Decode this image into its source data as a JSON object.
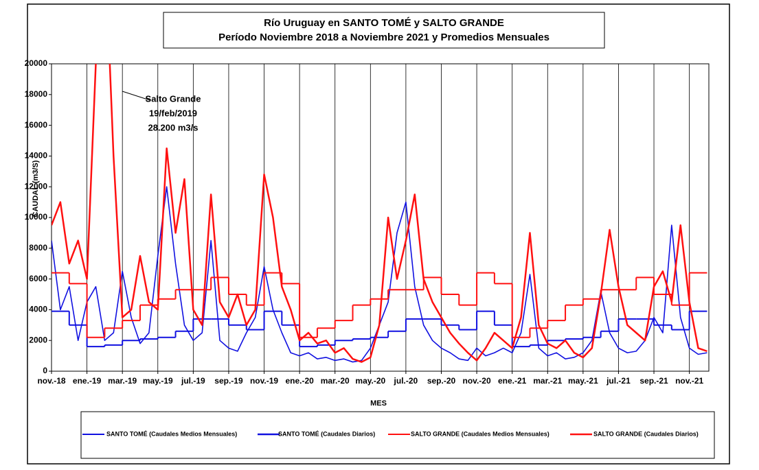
{
  "chart_data": {
    "type": "line",
    "title": [
      "Río Uruguay en SANTO TOMÉ y SALTO GRANDE",
      "Período Noviembre  2018 a Noviembre  2021 y Promedios Mensuales"
    ],
    "xlabel": "MES",
    "ylabel": "CAUDAL  (m3/S)",
    "annotation": [
      "Salto Grande",
      "19/feb/2019",
      "28.200  m3/s"
    ],
    "xlim": [
      0,
      37.1
    ],
    "ylim": [
      0,
      20000
    ],
    "yticks": [
      0,
      2000,
      4000,
      6000,
      8000,
      10000,
      12000,
      14000,
      16000,
      18000,
      20000
    ],
    "xticks": [
      {
        "value": 0,
        "label": "nov.-18"
      },
      {
        "value": 2,
        "label": "ene.-19"
      },
      {
        "value": 4,
        "label": "mar.-19"
      },
      {
        "value": 6,
        "label": "may.-19"
      },
      {
        "value": 8,
        "label": "jul.-19"
      },
      {
        "value": 10,
        "label": "sep.-19"
      },
      {
        "value": 12,
        "label": "nov.-19"
      },
      {
        "value": 14,
        "label": "ene.-20"
      },
      {
        "value": 16,
        "label": "mar.-20"
      },
      {
        "value": 18,
        "label": "may.-20"
      },
      {
        "value": 20,
        "label": "jul.-20"
      },
      {
        "value": 22,
        "label": "sep.-20"
      },
      {
        "value": 24,
        "label": "nov.-20"
      },
      {
        "value": 26,
        "label": "ene.-21"
      },
      {
        "value": 28,
        "label": "mar.-21"
      },
      {
        "value": 30,
        "label": "may.-21"
      },
      {
        "value": 32,
        "label": "jul.-21"
      },
      {
        "value": 34,
        "label": "sep.-21"
      },
      {
        "value": 36,
        "label": "nov.-21"
      }
    ],
    "grid": "x",
    "series": [
      {
        "name": "SANTO TOMÉ (Caudales Medios Mensuales)",
        "color": "#1010e0",
        "style": "step",
        "x": [
          0,
          1,
          2,
          3,
          4,
          5,
          6,
          7,
          8,
          9,
          10,
          11,
          12,
          13,
          14,
          15,
          16,
          17,
          18,
          19,
          20,
          21,
          22,
          23,
          24,
          25,
          26,
          27,
          28,
          29,
          30,
          31,
          32,
          33,
          34,
          35,
          36
        ],
        "values": [
          3900,
          3000,
          1600,
          1700,
          2000,
          2100,
          2200,
          2600,
          3400,
          3400,
          3000,
          2700,
          3900,
          3000,
          1600,
          1700,
          2000,
          2100,
          2200,
          2600,
          3400,
          3400,
          3000,
          2700,
          3900,
          3000,
          1600,
          1700,
          2000,
          2100,
          2200,
          2600,
          3400,
          3400,
          3000,
          2700,
          3900
        ]
      },
      {
        "name": "SANTO TOMÉ (Caudales Diarios)",
        "color": "#1010e0",
        "style": "line",
        "x": [
          0,
          0.5,
          1,
          1.5,
          2,
          2.5,
          3,
          3.5,
          4,
          4.5,
          5,
          5.5,
          6,
          6.5,
          7,
          7.5,
          8,
          8.5,
          9,
          9.5,
          10,
          10.5,
          11,
          11.5,
          12,
          12.5,
          13,
          13.5,
          14,
          14.5,
          15,
          15.5,
          16,
          16.5,
          17,
          17.5,
          18,
          18.5,
          19,
          19.5,
          20,
          20.5,
          21,
          21.5,
          22,
          22.5,
          23,
          23.5,
          24,
          24.5,
          25,
          25.5,
          26,
          26.5,
          27,
          27.5,
          28,
          28.5,
          29,
          29.5,
          30,
          30.5,
          31,
          31.5,
          32,
          32.5,
          33,
          33.5,
          34,
          34.5,
          35,
          35.5,
          36,
          36.5,
          37
        ],
        "values": [
          8500,
          4000,
          5500,
          2000,
          4500,
          5500,
          2000,
          2500,
          6500,
          3500,
          1800,
          2500,
          7500,
          12000,
          7000,
          3000,
          2000,
          2500,
          8500,
          2000,
          1500,
          1300,
          2500,
          3500,
          6800,
          4000,
          2500,
          1200,
          1000,
          1200,
          800,
          900,
          700,
          800,
          600,
          700,
          1500,
          3000,
          4500,
          9000,
          11000,
          5500,
          3000,
          2000,
          1500,
          1200,
          800,
          700,
          1500,
          1000,
          1200,
          1500,
          1200,
          2500,
          6300,
          1500,
          1000,
          1200,
          800,
          900,
          1200,
          2000,
          5200,
          2500,
          1500,
          1200,
          1300,
          2000,
          3500,
          2500,
          9500,
          3500,
          1500,
          1100,
          1200
        ]
      },
      {
        "name": "SALTO GRANDE (Caudales Medios Mensuales)",
        "color": "#ff1010",
        "style": "step",
        "x": [
          0,
          1,
          2,
          3,
          4,
          5,
          6,
          7,
          8,
          9,
          10,
          11,
          12,
          13,
          14,
          15,
          16,
          17,
          18,
          19,
          20,
          21,
          22,
          23,
          24,
          25,
          26,
          27,
          28,
          29,
          30,
          31,
          32,
          33,
          34,
          35,
          36
        ],
        "values": [
          6400,
          5700,
          2200,
          2800,
          3300,
          4300,
          4700,
          5300,
          5300,
          6100,
          5000,
          4300,
          6400,
          5700,
          2200,
          2800,
          3300,
          4300,
          4700,
          5300,
          5300,
          6100,
          5000,
          4300,
          6400,
          5700,
          2200,
          2800,
          3300,
          4300,
          4700,
          5300,
          5300,
          6100,
          5000,
          4300,
          6400
        ]
      },
      {
        "name": "SALTO GRANDE (Caudales Diarios)",
        "color": "#ff1010",
        "style": "line",
        "x": [
          0,
          0.5,
          1,
          1.5,
          2,
          2.5,
          3,
          3.5,
          4,
          4.5,
          5,
          5.5,
          6,
          6.5,
          7,
          7.5,
          8,
          8.5,
          9,
          9.5,
          10,
          10.5,
          11,
          11.5,
          12,
          12.5,
          13,
          13.5,
          14,
          14.5,
          15,
          15.5,
          16,
          16.5,
          17,
          17.5,
          18,
          18.5,
          19,
          19.5,
          20,
          20.5,
          21,
          21.5,
          22,
          22.5,
          23,
          23.5,
          24,
          24.5,
          25,
          25.5,
          26,
          26.5,
          27,
          27.5,
          28,
          28.5,
          29,
          29.5,
          30,
          30.5,
          31,
          31.5,
          32,
          32.5,
          33,
          33.5,
          34,
          34.5,
          35,
          35.5,
          36,
          36.5,
          37
        ],
        "values": [
          9500,
          11000,
          7000,
          8500,
          6000,
          20000,
          28200,
          14000,
          3500,
          4000,
          7500,
          4500,
          4000,
          14500,
          9000,
          12500,
          4000,
          3000,
          11500,
          4500,
          3500,
          5000,
          3000,
          4000,
          12800,
          10000,
          5500,
          4000,
          2000,
          2500,
          1800,
          2000,
          1200,
          1500,
          800,
          600,
          900,
          3000,
          10000,
          6000,
          8500,
          11500,
          6000,
          4500,
          3500,
          2500,
          1800,
          1200,
          700,
          1500,
          2500,
          2000,
          1500,
          3500,
          9000,
          3000,
          1800,
          1500,
          2000,
          1200,
          900,
          1500,
          5000,
          9200,
          5500,
          3000,
          2500,
          2000,
          5500,
          6500,
          4500,
          9500,
          4500,
          1500,
          1300
        ]
      }
    ]
  }
}
